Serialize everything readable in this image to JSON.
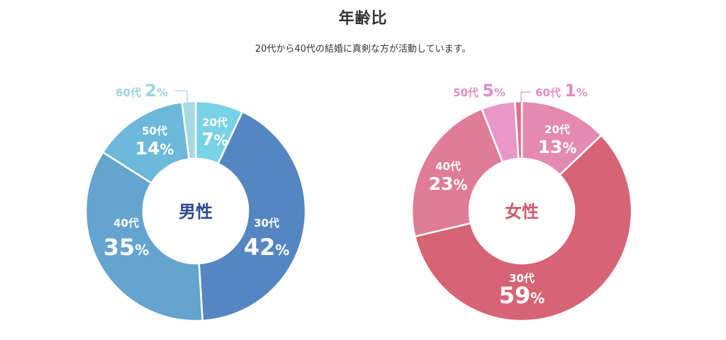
{
  "page": {
    "title": "年齢比",
    "subtitle": "20代から40代の結婚に真剣な方が活動しています。"
  },
  "chart_data": [
    {
      "type": "pie",
      "title": "男性",
      "center_color": "#2b4a8e",
      "categories": [
        "20代",
        "30代",
        "40代",
        "50代",
        "60代"
      ],
      "values": [
        7,
        42,
        35,
        14,
        2
      ],
      "unit": "%",
      "colors": [
        "#79d2e6",
        "#5586c1",
        "#64a4cf",
        "#6cb9db",
        "#a6d8e3"
      ],
      "label_colors": [
        "#ffffff",
        "#ffffff",
        "#ffffff",
        "#ffffff",
        "#9fd3e0"
      ]
    },
    {
      "type": "pie",
      "title": "女性",
      "center_color": "#d1586b",
      "categories": [
        "20代",
        "30代",
        "40代",
        "50代",
        "60代"
      ],
      "values": [
        13,
        59,
        23,
        5,
        1
      ],
      "unit": "%",
      "colors": [
        "#e38aae",
        "#d76474",
        "#e07c96",
        "#e798c8",
        "#e06c8a"
      ],
      "label_colors": [
        "#ffffff",
        "#ffffff",
        "#ffffff",
        "#e08fc4",
        "#e08fc4"
      ]
    }
  ]
}
